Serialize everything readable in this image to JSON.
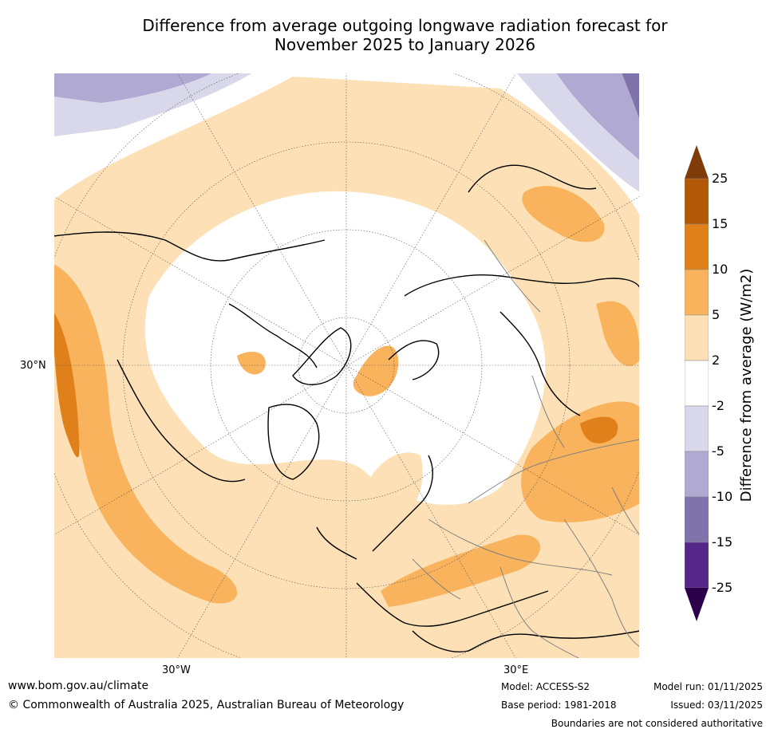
{
  "title": {
    "line1": "Difference from average outgoing longwave radiation forecast for",
    "line2": "November 2025 to January 2026"
  },
  "map": {
    "labels": {
      "lat_30N": "30°N",
      "lon_30W": "30°W",
      "lon_30E": "30°E"
    },
    "colors": {
      "ocean_neutral": "#ffffff",
      "pos_2_5": "#fde0b5",
      "pos_5_10": "#f9b35c",
      "pos_10_15": "#e0801a",
      "pos_15_25": "#b35806",
      "neg_2_5": "#d8d8ea",
      "neg_5_10": "#b0aad2",
      "neg_10_15": "#8073ac",
      "coastline": "#000000",
      "border": "#808080"
    }
  },
  "colorbar": {
    "label": "Difference from average (W/m2)",
    "ticks": [
      "25",
      "15",
      "10",
      "5",
      "2",
      "-2",
      "-5",
      "-10",
      "-15",
      "-25"
    ],
    "colors": [
      "#7f3b08",
      "#b35806",
      "#e0801a",
      "#f9b35c",
      "#fde0b5",
      "#ffffff",
      "#d8d8ea",
      "#b0aad2",
      "#8073ac",
      "#542788",
      "#2d004b"
    ]
  },
  "footer": {
    "website": "www.bom.gov.au/climate",
    "copyright": "© Commonwealth of Australia 2025, Australian Bureau of Meteorology",
    "model": "Model: ACCESS-S2",
    "base_period": "Base period: 1981-2018",
    "model_run": "Model run: 01/11/2025",
    "issued": "Issued: 03/11/2025",
    "disclaimer": "Boundaries are not considered authoritative"
  }
}
